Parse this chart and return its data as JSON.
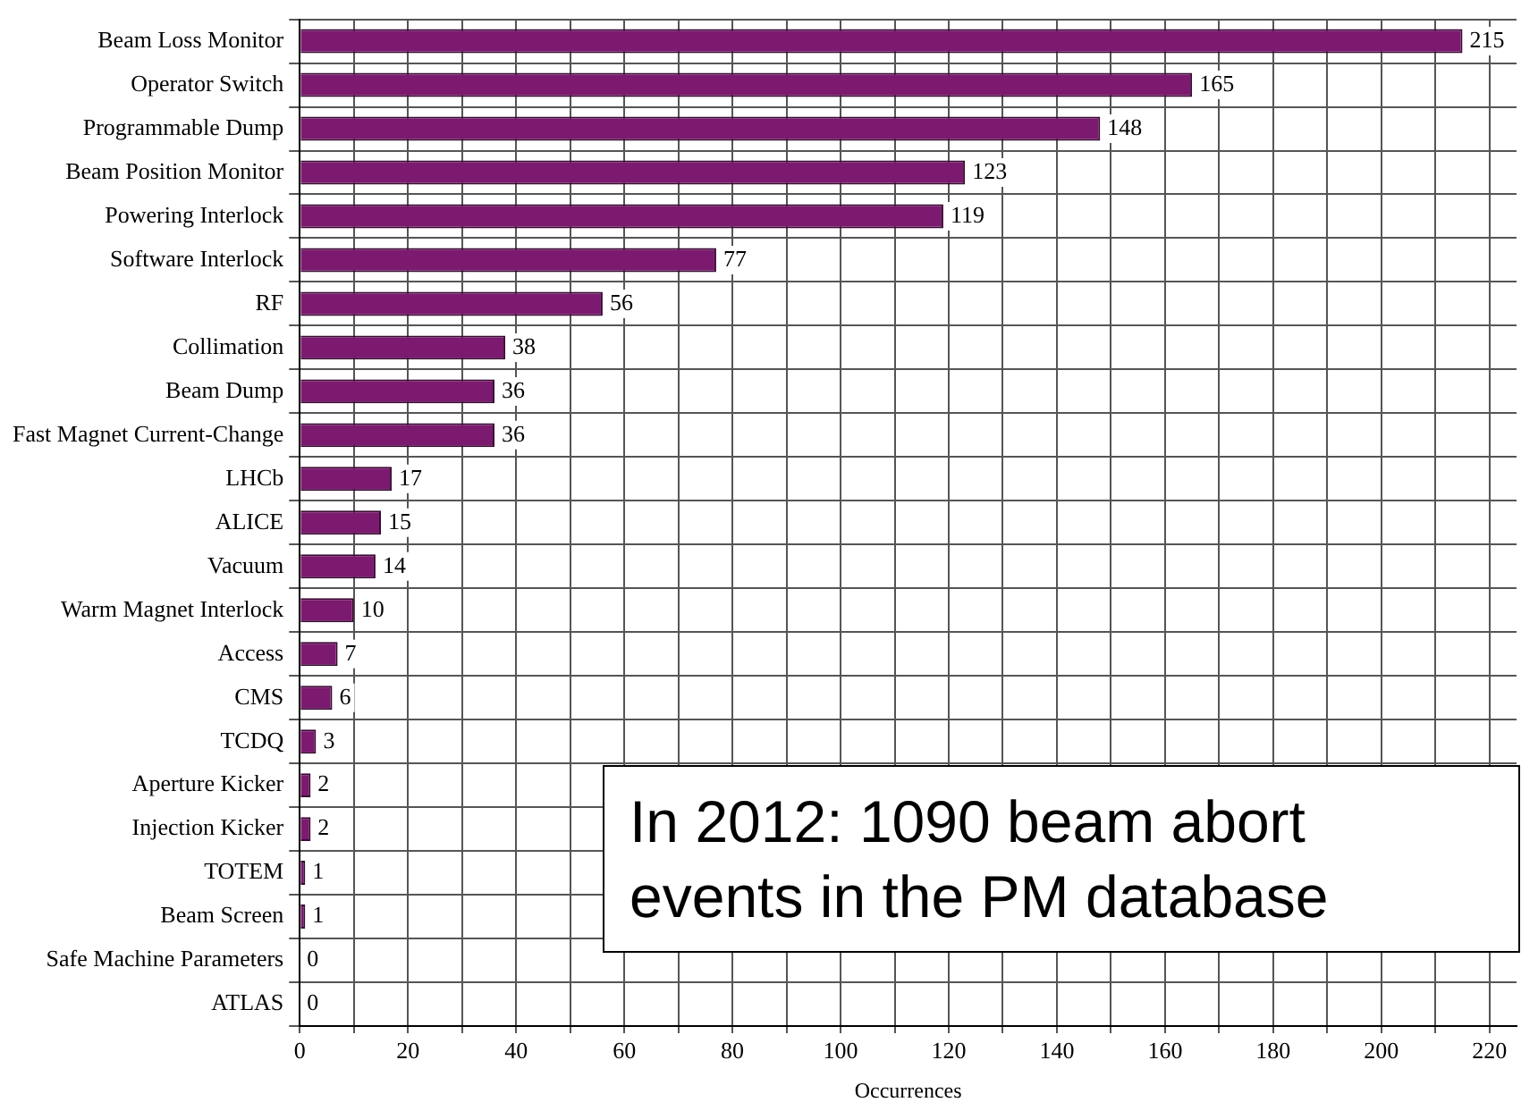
{
  "chart_data": {
    "type": "bar",
    "orientation": "horizontal",
    "xlabel": "Occurrences",
    "categories": [
      "Beam Loss Monitor",
      "Operator Switch",
      "Programmable Dump",
      "Beam Position Monitor",
      "Powering Interlock",
      "Software Interlock",
      "RF",
      "Collimation",
      "Beam Dump",
      "Fast Magnet Current-Change",
      "LHCb",
      "ALICE",
      "Vacuum",
      "Warm Magnet Interlock",
      "Access",
      "CMS",
      "TCDQ",
      "Aperture Kicker",
      "Injection Kicker",
      "TOTEM",
      "Beam Screen",
      "Safe Machine Parameters",
      "ATLAS"
    ],
    "values": [
      215,
      165,
      148,
      123,
      119,
      77,
      56,
      38,
      36,
      36,
      17,
      15,
      14,
      10,
      7,
      6,
      3,
      2,
      2,
      1,
      1,
      0,
      0
    ],
    "color": "#7b1a6e",
    "data_labels": true,
    "grid": true,
    "legend": false,
    "xlim": [
      0,
      225
    ],
    "xticks": [
      0,
      {
        "value": 10,
        "label": null
      },
      20,
      {
        "value": 30,
        "label": null
      },
      40,
      {
        "value": 50,
        "label": null
      },
      60,
      {
        "value": 70,
        "label": null
      },
      80,
      {
        "value": 90,
        "label": null
      },
      100,
      {
        "value": 110,
        "label": null
      },
      120,
      {
        "value": 130,
        "label": null
      },
      140,
      {
        "value": 150,
        "label": null
      },
      160,
      {
        "value": 170,
        "label": null
      },
      180,
      {
        "value": 190,
        "label": null
      },
      200,
      {
        "value": 210,
        "label": null
      },
      220
    ],
    "annotations": [
      "In 2012: 1090 beam abort events in the PM database"
    ]
  }
}
